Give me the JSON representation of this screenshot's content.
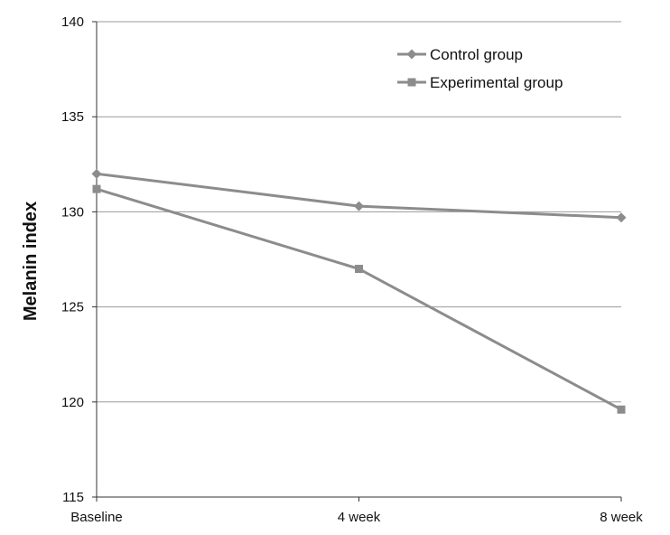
{
  "chart_data": {
    "type": "line",
    "title": "",
    "xlabel": "",
    "ylabel": "Melanin index",
    "categories": [
      "Baseline",
      "4 week",
      "8 week"
    ],
    "ylim": [
      115,
      140
    ],
    "yticks": [
      115,
      120,
      125,
      130,
      135,
      140
    ],
    "grid": true,
    "legend_position": "top-right",
    "series": [
      {
        "name": "Control group",
        "values": [
          132.0,
          130.3,
          129.7
        ],
        "marker": "diamond",
        "color": "#8c8c8c"
      },
      {
        "name": "Experimental group",
        "values": [
          131.2,
          127.0,
          119.6
        ],
        "marker": "square",
        "color": "#8c8c8c"
      }
    ]
  }
}
